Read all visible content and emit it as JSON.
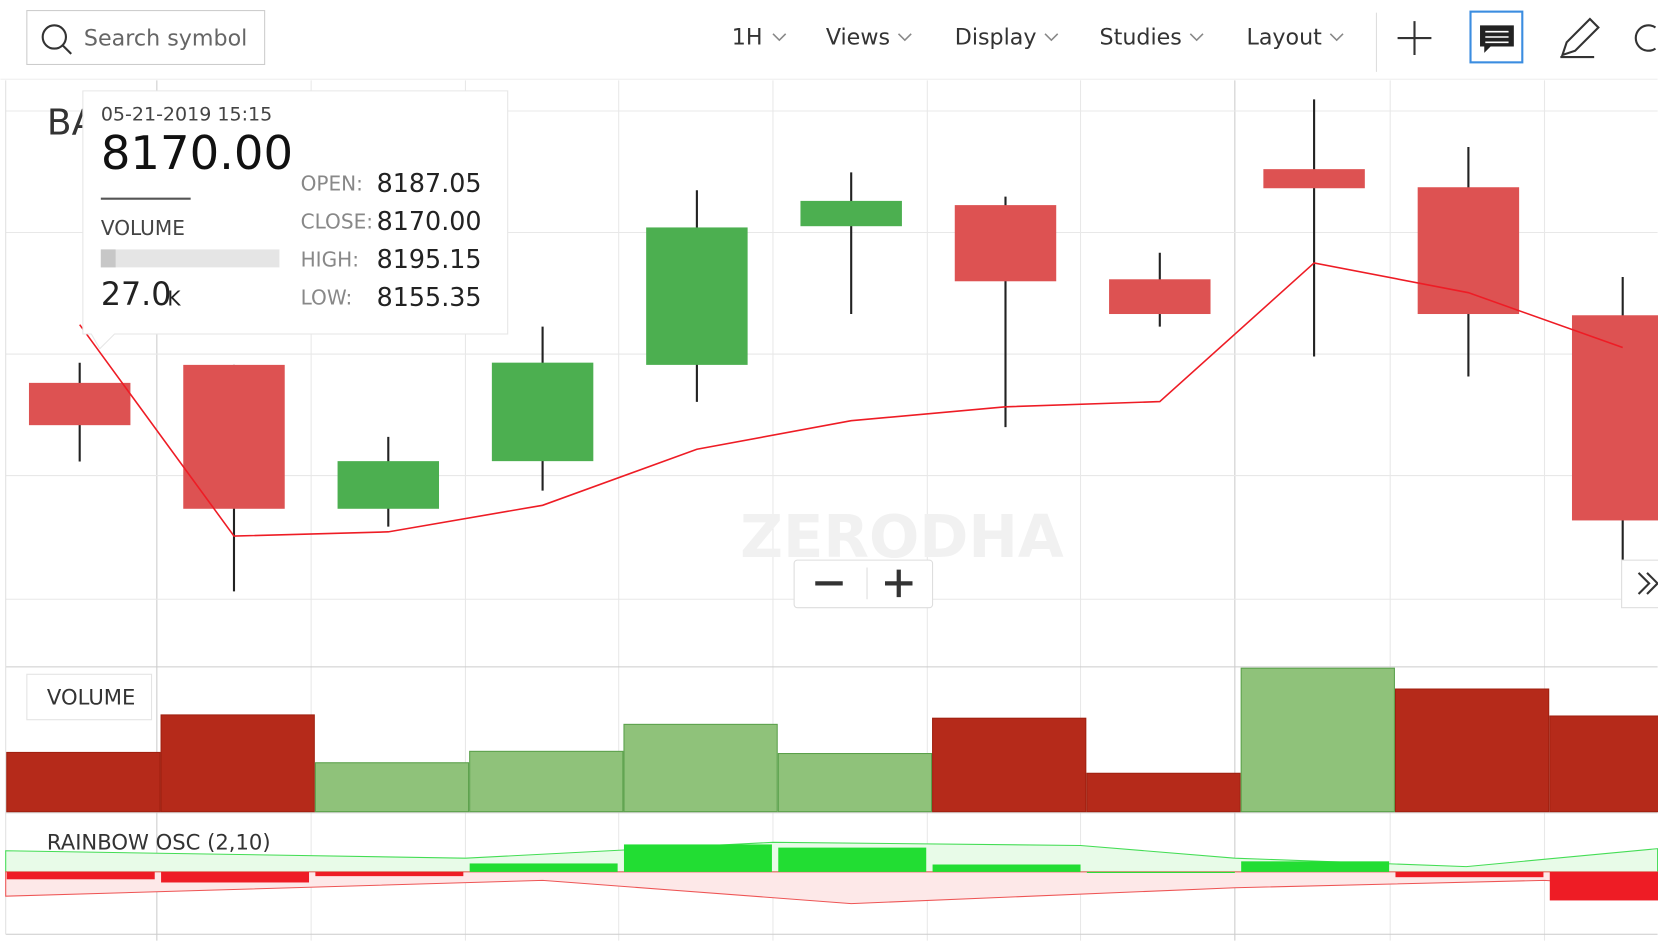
{
  "toolbar": {
    "search_placeholder": "Search symbol",
    "interval": "1H",
    "menus": [
      "Views",
      "Display",
      "Studies",
      "Layout"
    ]
  },
  "symbol": "BA",
  "watermark": "ZERODHA",
  "tooltip": {
    "date": "05-21-2019 15:15",
    "price": "8170.00",
    "volume_label": "VOLUME",
    "volume": "27.0",
    "volume_unit": "K",
    "fields": [
      {
        "label": "OPEN:",
        "value": "8187.05"
      },
      {
        "label": "CLOSE:",
        "value": "8170.00"
      },
      {
        "label": "HIGH:",
        "value": "8195.15"
      },
      {
        "label": "LOW:",
        "value": "8155.35"
      }
    ]
  },
  "chart_data": [
    {
      "type": "candlestick",
      "categories": [
        null,
        null,
        null,
        null,
        null,
        null,
        null,
        null,
        null,
        null,
        null
      ],
      "open": [
        8187.05,
        8194.3,
        8136.3,
        8155.5,
        8194.3,
        8250.2,
        8258.7,
        8228.8,
        8273.2,
        8265.9,
        8214.3
      ],
      "high": [
        8195.15,
        8194.3,
        8165.3,
        8209.7,
        8264.7,
        8271.9,
        8262.1,
        8239.5,
        8301.3,
        8282.1,
        8229.7
      ],
      "low": [
        8155.35,
        8103.0,
        8129.1,
        8143.6,
        8179.4,
        8214.8,
        8169.2,
        8209.7,
        8197.7,
        8189.6,
        8104.3
      ],
      "close": [
        8170.0,
        8136.3,
        8155.5,
        8195.2,
        8249.7,
        8260.4,
        8228.0,
        8214.8,
        8265.5,
        8214.8,
        8131.6
      ],
      "up_color": "#4caf50",
      "down_color": "#dd5252",
      "overlay": {
        "color": "#ee1c25",
        "values": [
          8210.5,
          8125.3,
          8127.0,
          8137.7,
          8160.3,
          8171.8,
          8177.4,
          8179.5,
          8235.4,
          8223.4,
          8201.3
        ]
      },
      "ylim": [
        8073,
        8309
      ]
    },
    {
      "type": "bar",
      "title": "VOLUME",
      "values": [
        27.0,
        44.1,
        22.3,
        27.5,
        39.8,
        26.5,
        42.6,
        17.5,
        65.4,
        55.9,
        43.6
      ],
      "colors": [
        "#b52a1a",
        "#b52a1a",
        "#8fc27a",
        "#8fc27a",
        "#8fc27a",
        "#8fc27a",
        "#b52a1a",
        "#b52a1a",
        "#8fc27a",
        "#b52a1a",
        "#b52a1a"
      ],
      "ylim": [
        0,
        66
      ]
    },
    {
      "type": "histogram-osc",
      "title": "RAINBOW OSC (2,10)",
      "values": [
        -7,
        -10,
        -4,
        8,
        26,
        23,
        7,
        0,
        10,
        -5,
        -27
      ],
      "up_color": "#22dd33",
      "down_color": "#ee1c25",
      "ylim": [
        -59,
        55
      ]
    }
  ]
}
